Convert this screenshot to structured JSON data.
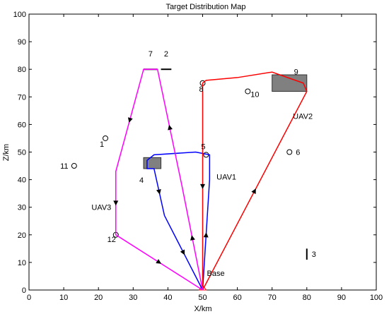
{
  "chart_data": {
    "type": "line",
    "title": "Target Distribution Map",
    "xlabel": "X/km",
    "ylabel": "Z/km",
    "xlim": [
      0,
      100
    ],
    "ylim": [
      0,
      100
    ],
    "xticks": [
      0,
      10,
      20,
      30,
      40,
      50,
      60,
      70,
      80,
      90,
      100
    ],
    "yticks": [
      0,
      10,
      20,
      30,
      40,
      50,
      60,
      70,
      80,
      90,
      100
    ],
    "grid": false,
    "base": {
      "label": "Base",
      "x": 50,
      "y": 0
    },
    "circle_targets": [
      {
        "label": "1",
        "x": 22,
        "y": 55
      },
      {
        "label": "5",
        "x": 51,
        "y": 49
      },
      {
        "label": "6",
        "x": 75,
        "y": 50
      },
      {
        "label": "8",
        "x": 50,
        "y": 75
      },
      {
        "label": "10",
        "x": 63,
        "y": 72
      },
      {
        "label": "11",
        "x": 13,
        "y": 45
      },
      {
        "label": "12",
        "x": 25,
        "y": 20
      }
    ],
    "area_targets": [
      {
        "label": "4",
        "x0": 33,
        "x1": 38,
        "y0": 44,
        "y1": 48
      },
      {
        "label": "9",
        "x0": 70,
        "x1": 80,
        "y0": 72,
        "y1": 78
      }
    ],
    "line_targets": [
      {
        "label": "2",
        "x0": 38,
        "x1": 41,
        "y0": 80,
        "y1": 80
      },
      {
        "label": "3",
        "x0": 80,
        "x1": 80,
        "y0": 11,
        "y1": 15
      },
      {
        "label": "7",
        "x0": 33,
        "x1": 37,
        "y0": 80,
        "y1": 80
      }
    ],
    "series": [
      {
        "name": "UAV1",
        "color": "#0000ff",
        "x": [
          50,
          52,
          52,
          48,
          36,
          34,
          34,
          34,
          36,
          39,
          50
        ],
        "y": [
          0,
          40,
          49,
          50,
          49,
          47,
          45,
          44,
          44,
          27,
          0
        ]
      },
      {
        "name": "UAV2",
        "color": "#ff0000",
        "x": [
          50,
          80,
          79,
          70,
          60,
          51,
          50,
          50
        ],
        "y": [
          0,
          72,
          75,
          79,
          77,
          76,
          75,
          0
        ]
      },
      {
        "name": "UAV3",
        "color": "#ff00ff",
        "x": [
          50,
          44,
          37,
          33,
          25,
          25,
          50
        ],
        "y": [
          0,
          38,
          80,
          80,
          43,
          20,
          0
        ]
      }
    ]
  }
}
